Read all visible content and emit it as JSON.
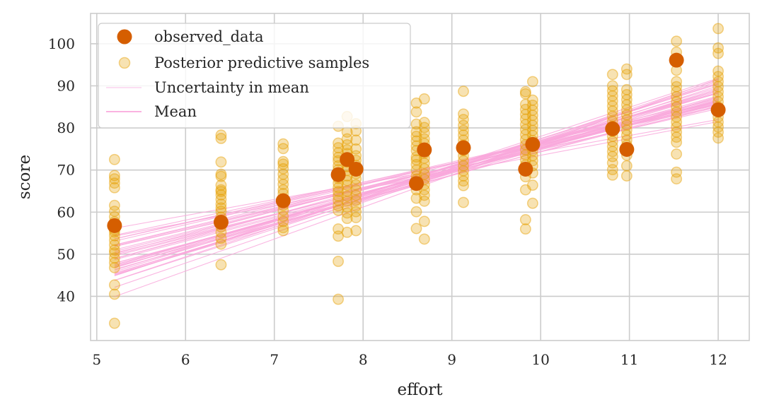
{
  "chart_data": {
    "type": "scatter",
    "xlabel": "effort",
    "ylabel": "score",
    "xlim": [
      4.93,
      12.35
    ],
    "ylim": [
      29.5,
      107.2
    ],
    "xticks": [
      5,
      6,
      7,
      8,
      9,
      10,
      11,
      12
    ],
    "yticks": [
      40,
      50,
      60,
      70,
      80,
      90,
      100
    ],
    "grid": true,
    "legend_position": "top-left",
    "colors": {
      "observed": "#d55e00",
      "samples": "#e69f00",
      "mean_line": "#f9a8dc",
      "grid": "#cccccc",
      "axes_edge": "#cccccc"
    },
    "legend": {
      "observed": "observed_data",
      "samples": "Posterior predictive samples",
      "uncertainty": "Uncertainty in mean",
      "mean": "Mean"
    },
    "observed_data": {
      "x": [
        5.2,
        6.4,
        7.1,
        7.72,
        7.82,
        7.92,
        8.6,
        8.69,
        9.13,
        9.83,
        9.91,
        10.81,
        10.97,
        11.53,
        12.0
      ],
      "y": [
        56.8,
        57.6,
        62.7,
        68.9,
        72.5,
        70.2,
        66.8,
        74.8,
        75.3,
        70.2,
        76.1,
        79.8,
        74.9,
        96.1,
        84.3
      ]
    },
    "posterior_predictive_samples": {
      "x_positions": [
        5.2,
        6.4,
        7.1,
        7.72,
        7.82,
        7.92,
        8.6,
        8.69,
        9.13,
        9.83,
        9.91,
        10.81,
        10.97,
        11.53,
        12.0
      ],
      "samples": [
        [
          72.5,
          68.7,
          67.9,
          66.9,
          65.8,
          61.6,
          60.2,
          58.9,
          57.7,
          56.8,
          55.8,
          55.3,
          54.4,
          53.3,
          52.2,
          51.0,
          50.3,
          49.1,
          48.0,
          46.8,
          42.7,
          40.5,
          33.6
        ],
        [
          78.3,
          77.5,
          71.9,
          69.0,
          68.5,
          66.4,
          65.3,
          64.9,
          64.1,
          63.0,
          61.9,
          61.0,
          60.2,
          58.8,
          57.6,
          56.5,
          55.2,
          53.8,
          52.4,
          47.5
        ],
        [
          76.2,
          75.1,
          72.0,
          71.4,
          70.3,
          69.0,
          67.8,
          66.6,
          65.3,
          64.4,
          63.2,
          62.7,
          61.6,
          60.4,
          59.0,
          57.8,
          56.3,
          55.6
        ],
        [
          80.4,
          76.4,
          75.3,
          74.1,
          73.0,
          72.2,
          71.0,
          70.1,
          69.0,
          68.0,
          66.9,
          65.8,
          64.9,
          63.8,
          62.8,
          61.5,
          60.4,
          56.0,
          54.3,
          48.3,
          39.3
        ],
        [
          82.7,
          79.0,
          77.4,
          76.0,
          74.8,
          73.9,
          72.9,
          71.9,
          70.8,
          69.9,
          68.6,
          67.5,
          66.4,
          65.0,
          63.8,
          62.6,
          61.2,
          59.8,
          58.5,
          55.2
        ],
        [
          81.0,
          79.3,
          77.1,
          75.0,
          73.4,
          72.3,
          71.1,
          70.2,
          69.1,
          67.9,
          66.5,
          65.3,
          64.0,
          62.8,
          61.4,
          60.1,
          58.7,
          55.6
        ],
        [
          85.9,
          83.8,
          80.9,
          79.1,
          78.0,
          76.9,
          75.7,
          74.6,
          73.1,
          72.4,
          71.3,
          70.0,
          68.6,
          67.8,
          66.5,
          65.3,
          63.3,
          60.1,
          56.1
        ],
        [
          86.9,
          81.3,
          80.1,
          78.8,
          77.4,
          76.3,
          75.1,
          74.0,
          72.8,
          71.6,
          70.3,
          69.0,
          67.8,
          66.5,
          65.3,
          64.0,
          62.6,
          57.8,
          53.6
        ],
        [
          88.7,
          83.3,
          82.0,
          80.6,
          79.4,
          78.3,
          77.1,
          75.9,
          74.6,
          73.4,
          72.2,
          71.0,
          69.8,
          68.6,
          67.4,
          66.3,
          62.3
        ],
        [
          88.6,
          88.1,
          85.6,
          84.4,
          83.2,
          82.1,
          80.8,
          79.6,
          78.4,
          77.2,
          76.0,
          74.8,
          73.6,
          72.4,
          71.2,
          69.9,
          68.4,
          65.3,
          58.2,
          56.0
        ],
        [
          91.0,
          86.6,
          85.4,
          84.2,
          83.0,
          81.8,
          80.6,
          79.4,
          78.2,
          77.0,
          75.8,
          74.6,
          73.4,
          72.2,
          71.0,
          69.3,
          66.4,
          62.1
        ],
        [
          92.7,
          90.0,
          88.8,
          87.6,
          86.4,
          85.2,
          84.0,
          82.8,
          81.6,
          80.4,
          79.2,
          78.0,
          76.8,
          75.6,
          74.4,
          73.2,
          71.7,
          70.1,
          68.8
        ],
        [
          94.0,
          92.7,
          89.1,
          87.9,
          86.7,
          85.5,
          84.3,
          83.1,
          81.9,
          80.7,
          79.5,
          78.3,
          77.1,
          75.9,
          74.7,
          73.5,
          71.0,
          68.6
        ],
        [
          100.6,
          98.0,
          93.7,
          91.0,
          89.8,
          88.6,
          87.4,
          86.2,
          85.0,
          83.8,
          82.6,
          81.4,
          80.2,
          79.0,
          77.8,
          76.6,
          73.8,
          69.5,
          67.9
        ],
        [
          103.6,
          99.0,
          97.7,
          93.5,
          92.2,
          91.0,
          89.8,
          88.6,
          87.4,
          86.2,
          85.0,
          83.8,
          82.6,
          81.4,
          80.2,
          79.0,
          77.6
        ]
      ]
    },
    "mean_lines": [
      {
        "intercept": 13.0,
        "slope": 6.2
      },
      {
        "intercept": 15.5,
        "slope": 6.1
      },
      {
        "intercept": 12.4,
        "slope": 6.5
      },
      {
        "intercept": 25.7,
        "slope": 5.1
      },
      {
        "intercept": 21.5,
        "slope": 5.4
      },
      {
        "intercept": 11.5,
        "slope": 6.6
      },
      {
        "intercept": 12.7,
        "slope": 6.3
      },
      {
        "intercept": 26.7,
        "slope": 4.9
      },
      {
        "intercept": 27.9,
        "slope": 4.85
      },
      {
        "intercept": 14.0,
        "slope": 6.3
      },
      {
        "intercept": 31.1,
        "slope": 4.5
      },
      {
        "intercept": 20.1,
        "slope": 5.5
      },
      {
        "intercept": 4.7,
        "slope": 7.2
      },
      {
        "intercept": 18.8,
        "slope": 5.8
      },
      {
        "intercept": 9.0,
        "slope": 6.9
      },
      {
        "intercept": 23.1,
        "slope": 5.3
      },
      {
        "intercept": 16.3,
        "slope": 6.0
      },
      {
        "intercept": 29.2,
        "slope": 4.7
      },
      {
        "intercept": 17.4,
        "slope": 5.7
      },
      {
        "intercept": 7.4,
        "slope": 7.0
      },
      {
        "intercept": 33.5,
        "slope": 4.0
      },
      {
        "intercept": 21.0,
        "slope": 5.6
      },
      {
        "intercept": 14.6,
        "slope": 6.2
      },
      {
        "intercept": 23.8,
        "slope": 5.1
      },
      {
        "intercept": 10.1,
        "slope": 6.7
      },
      {
        "intercept": 24.0,
        "slope": 5.2
      },
      {
        "intercept": 19.3,
        "slope": 5.5
      },
      {
        "intercept": 12.2,
        "slope": 6.4
      },
      {
        "intercept": 27.0,
        "slope": 4.8
      },
      {
        "intercept": 16.8,
        "slope": 5.9
      },
      {
        "intercept": 0.4,
        "slope": 7.6
      },
      {
        "intercept": 36.4,
        "slope": 3.8
      },
      {
        "intercept": 22.3,
        "slope": 5.3
      },
      {
        "intercept": 11.3,
        "slope": 6.5
      },
      {
        "intercept": 18.2,
        "slope": 5.7
      },
      {
        "intercept": 25.8,
        "slope": 5.0
      },
      {
        "intercept": 8.4,
        "slope": 6.8
      },
      {
        "intercept": 20.4,
        "slope": 5.5
      },
      {
        "intercept": 15.2,
        "slope": 6.0
      },
      {
        "intercept": 28.7,
        "slope": 4.8
      }
    ]
  }
}
